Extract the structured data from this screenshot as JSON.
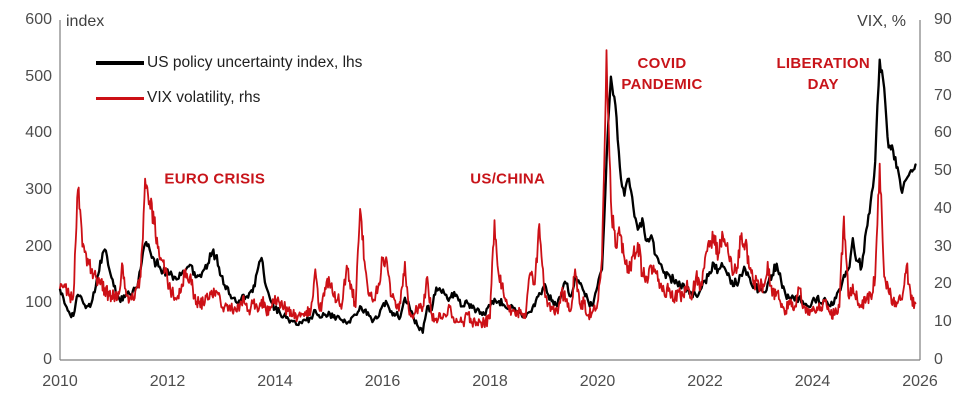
{
  "colors": {
    "black_line": "#000000",
    "red_line": "#cc1016",
    "annotation_red": "#c8141a",
    "axis_text": "#4d4d4d",
    "spine": "#7f7f7f"
  },
  "legend": [
    {
      "label": "US policy uncertainty index, lhs",
      "color": "#000000"
    },
    {
      "label": "VIX volatility, rhs",
      "color": "#cc1016"
    }
  ],
  "chart_data": {
    "type": "line",
    "title": "",
    "left_axis": {
      "label": "index",
      "min": 0,
      "max": 600,
      "ticks": [
        0,
        100,
        200,
        300,
        400,
        500,
        600
      ]
    },
    "right_axis": {
      "label": "VIX, %",
      "min": 0,
      "max": 90,
      "ticks": [
        0,
        10,
        20,
        30,
        40,
        50,
        60,
        70,
        80,
        90
      ]
    },
    "x_axis": {
      "min": 2010,
      "max": 2026,
      "ticks": [
        2010,
        2012,
        2014,
        2016,
        2018,
        2020,
        2022,
        2024,
        2026
      ]
    },
    "x_start_year": 2010,
    "x_step_months": 1,
    "grid": false,
    "series": [
      {
        "name": "US policy uncertainty index, lhs",
        "axis": "left",
        "color": "#000000",
        "values": [
          125,
          100,
          85,
          78,
          115,
          105,
          95,
          100,
          130,
          175,
          195,
          160,
          130,
          112,
          105,
          118,
          112,
          128,
          160,
          205,
          195,
          178,
          165,
          155,
          160,
          150,
          142,
          150,
          158,
          168,
          155,
          148,
          158,
          170,
          190,
          185,
          148,
          125,
          115,
          110,
          105,
          115,
          110,
          120,
          155,
          180,
          130,
          105,
          90,
          85,
          78,
          72,
          68,
          62,
          65,
          70,
          75,
          88,
          75,
          80,
          85,
          75,
          78,
          70,
          64,
          74,
          80,
          95,
          88,
          78,
          70,
          75,
          96,
          100,
          86,
          80,
          76,
          110,
          95,
          72,
          58,
          48,
          95,
          88,
          128,
          122,
          115,
          110,
          120,
          105,
          95,
          100,
          92,
          88,
          84,
          80,
          95,
          108,
          104,
          98,
          90,
          95,
          85,
          80,
          76,
          85,
          95,
          118,
          130,
          115,
          105,
          95,
          120,
          135,
          112,
          148,
          135,
          120,
          102,
          96,
          130,
          160,
          350,
          500,
          450,
          340,
          290,
          320,
          270,
          230,
          250,
          210,
          220,
          185,
          170,
          155,
          150,
          140,
          130,
          135,
          125,
          118,
          114,
          124,
          140,
          155,
          170,
          160,
          165,
          150,
          140,
          134,
          150,
          160,
          145,
          130,
          124,
          120,
          135,
          150,
          170,
          140,
          115,
          110,
          105,
          110,
          100,
          95,
          105,
          110,
          100,
          105,
          95,
          110,
          125,
          150,
          160,
          215,
          175,
          165,
          230,
          280,
          350,
          530,
          480,
          375,
          370,
          340,
          295,
          320,
          335,
          345
        ]
      },
      {
        "name": "VIX volatility, rhs",
        "axis": "right",
        "color": "#cc1016",
        "values": [
          19,
          20,
          17,
          17,
          45,
          30,
          25,
          24,
          22,
          20,
          19,
          17,
          17,
          18,
          25,
          17,
          16,
          19,
          22,
          48,
          42,
          36,
          30,
          26,
          21,
          18,
          16,
          18,
          24,
          22,
          17,
          15,
          15,
          16,
          17,
          18,
          14,
          15,
          13,
          14,
          13,
          17,
          13,
          15,
          14,
          16,
          13,
          14,
          17,
          15,
          14,
          13,
          12,
          11,
          12,
          13,
          13,
          24,
          13,
          17,
          22,
          17,
          16,
          15,
          25,
          20,
          14,
          40,
          26,
          17,
          16,
          19,
          27,
          26,
          17,
          14,
          15,
          26,
          12,
          12,
          14,
          14,
          22,
          12,
          11,
          11,
          12,
          14,
          10,
          10,
          10,
          12,
          10,
          10,
          10,
          10,
          11,
          37,
          22,
          18,
          14,
          13,
          13,
          12,
          12,
          23,
          20,
          36,
          20,
          15,
          14,
          13,
          18,
          16,
          13,
          24,
          15,
          15,
          12,
          13,
          15,
          27,
          82,
          42,
          30,
          33,
          27,
          23,
          28,
          31,
          23,
          22,
          25,
          23,
          20,
          17,
          19,
          16,
          18,
          17,
          21,
          16,
          22,
          19,
          27,
          30,
          33,
          28,
          33,
          31,
          24,
          23,
          32,
          31,
          24,
          21,
          19,
          20,
          26,
          17,
          18,
          14,
          13,
          16,
          14,
          19,
          14,
          12,
          13,
          14,
          13,
          16,
          12,
          12,
          14,
          38,
          17,
          20,
          16,
          14,
          16,
          17,
          22,
          52,
          22,
          18,
          16,
          15,
          16,
          25,
          16,
          15
        ]
      }
    ],
    "annotations": [
      {
        "name": "annotation-euro-crisis",
        "text": "EURO CRISIS",
        "x_year": 2012.88,
        "y_index": 320
      },
      {
        "name": "annotation-us-china",
        "text": "US/CHINA",
        "x_year": 2018.33,
        "y_index": 320
      },
      {
        "name": "annotation-covid-pandemic",
        "text": "COVID\nPANDEMIC",
        "x_year": 2021.2,
        "y_index": 505
      },
      {
        "name": "annotation-liberation-day",
        "text": "LIBERATION\nDAY",
        "x_year": 2024.2,
        "y_index": 505
      }
    ]
  }
}
